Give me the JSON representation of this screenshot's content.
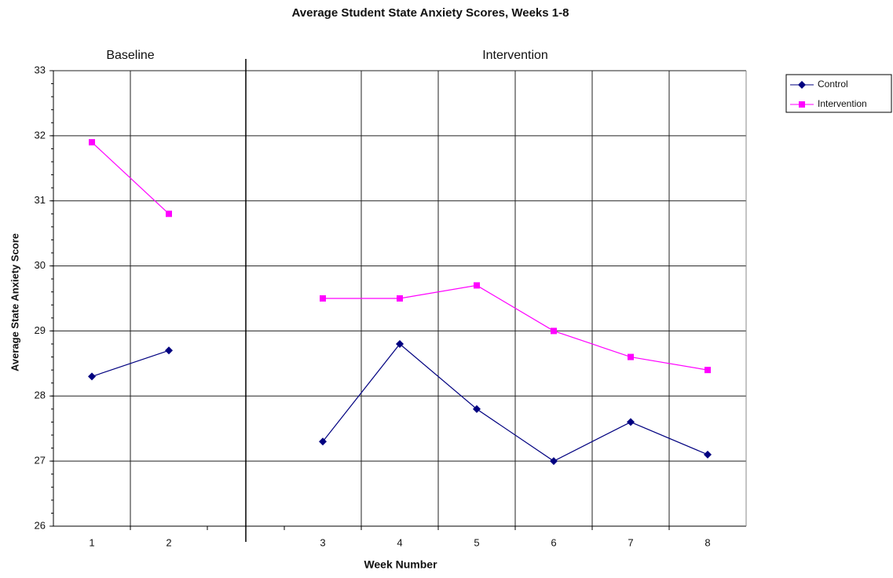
{
  "chart_data": {
    "type": "line",
    "title": "Average Student State Anxiety Scores, Weeks 1-8",
    "x_label": "Week Number",
    "y_label": "Average State Anxiety Score",
    "annotations": [
      "Baseline",
      "Intervention"
    ],
    "categories": [
      "1",
      "2",
      null,
      "3",
      "4",
      "5",
      "6",
      "7",
      "8"
    ],
    "series": [
      {
        "name": "Control",
        "color": "#000080",
        "marker": "diamond",
        "values": [
          28.3,
          28.7,
          null,
          27.3,
          28.8,
          27.8,
          27.0,
          27.6,
          27.1
        ]
      },
      {
        "name": "Intervention",
        "color": "#ff00ff",
        "marker": "square",
        "values": [
          31.9,
          30.8,
          null,
          29.5,
          29.5,
          29.7,
          29.0,
          28.6,
          28.4
        ]
      }
    ],
    "ylim": [
      26,
      33
    ],
    "yticks": [
      26,
      27,
      28,
      29,
      30,
      31,
      32,
      33
    ],
    "grid": true,
    "legend": "right"
  }
}
